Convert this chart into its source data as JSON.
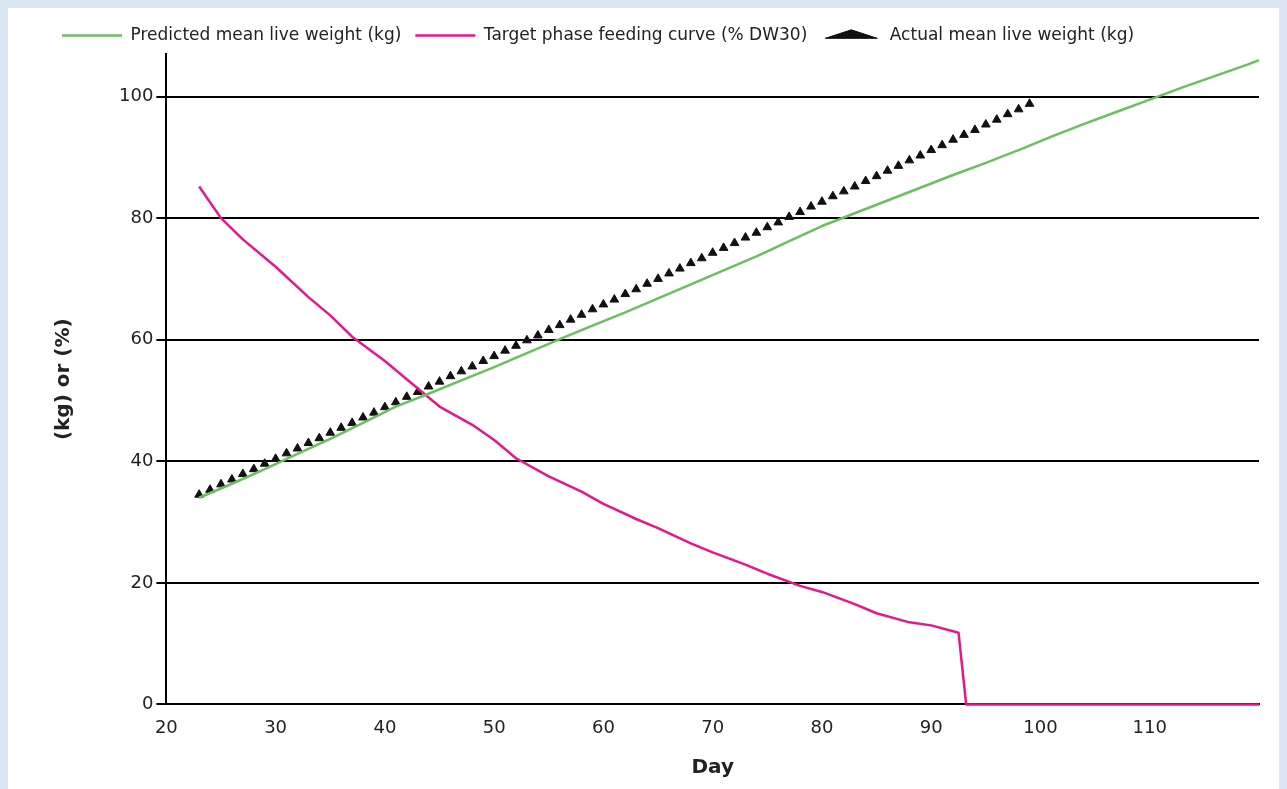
{
  "chart_data": {
    "type": "line",
    "xlabel": "Day",
    "ylabel": "(kg) or (%)",
    "xlim": [
      20,
      120
    ],
    "xticks": [
      20,
      30,
      40,
      50,
      60,
      70,
      80,
      90,
      100,
      110
    ],
    "ylim": [
      0,
      107
    ],
    "yticks": [
      0,
      20,
      40,
      60,
      80,
      100
    ],
    "grid": "y",
    "legend": "top left",
    "marker": "none",
    "line_style": "solid",
    "series": [
      {
        "name": "Predicted mean live weight (kg)",
        "color": "#6abf5e",
        "x": [
          23,
          26,
          29,
          32,
          35,
          38,
          41,
          44,
          47,
          50,
          53,
          56,
          59,
          62,
          65,
          68,
          71,
          74,
          77,
          80,
          83,
          86,
          89,
          92,
          95,
          98,
          101,
          104,
          107,
          110,
          113,
          116,
          119,
          120
        ],
        "values": [
          34,
          36.3,
          38.7,
          41.2,
          43.7,
          46.3,
          49,
          51.1,
          53.3,
          55.5,
          57.8,
          60.1,
          62.3,
          64.5,
          66.8,
          69.1,
          71.4,
          73.7,
          76.2,
          78.7,
          80.8,
          82.9,
          85,
          87.1,
          89.1,
          91.2,
          93.4,
          95.5,
          97.5,
          99.5,
          101.5,
          103.4,
          105.3,
          106
        ]
      },
      {
        "name": "Target phase feeding curve (% DW30)",
        "color": "#e8168c",
        "x": [
          23,
          25,
          27,
          30,
          33,
          35,
          37,
          40,
          42,
          45,
          48,
          50,
          52,
          55,
          58,
          60,
          63,
          65,
          68,
          70,
          73,
          75,
          78,
          80,
          83,
          85,
          88,
          90,
          92.5,
          93.2,
          120
        ],
        "values": [
          85.2,
          80,
          76.5,
          72,
          67,
          64,
          60.5,
          56.5,
          53.5,
          49,
          46,
          43.5,
          40.5,
          37.5,
          35,
          33,
          30.5,
          29,
          26.5,
          25,
          23,
          21.5,
          19.5,
          18.5,
          16.5,
          15,
          13.5,
          13,
          11.8,
          0,
          0
        ]
      },
      {
        "name": "Actual mean live weight (kg)",
        "type": "scatter",
        "marker": "triangle",
        "color": "#111111",
        "x": [
          23,
          24,
          25,
          26,
          27,
          28,
          29,
          30,
          31,
          32,
          33,
          34,
          35,
          36,
          37,
          38,
          39,
          40,
          41,
          42,
          43,
          44,
          45,
          46,
          47,
          48,
          49,
          50,
          51,
          52,
          53,
          54,
          55,
          56,
          57,
          58,
          59,
          60,
          61,
          62,
          63,
          64,
          65,
          66,
          67,
          68,
          69,
          70,
          71,
          72,
          73,
          74,
          75,
          76,
          77,
          78,
          79,
          80,
          81,
          82,
          83,
          84,
          85,
          86,
          87,
          88,
          89,
          90,
          91,
          92,
          93,
          94,
          95,
          96,
          97,
          98,
          99
        ],
        "values": [
          34.5,
          35.3,
          36.2,
          37.0,
          37.9,
          38.7,
          39.6,
          40.4,
          41.3,
          42.1,
          43.0,
          43.8,
          44.7,
          45.5,
          46.3,
          47.2,
          48.0,
          48.9,
          49.7,
          50.6,
          51.4,
          52.3,
          53.1,
          54.0,
          54.8,
          55.6,
          56.5,
          57.3,
          58.2,
          59.0,
          59.9,
          60.7,
          61.6,
          62.4,
          63.3,
          64.1,
          65.0,
          65.8,
          66.6,
          67.5,
          68.3,
          69.2,
          70.0,
          70.9,
          71.7,
          72.6,
          73.4,
          74.3,
          75.1,
          75.9,
          76.8,
          77.6,
          78.5,
          79.3,
          80.2,
          81.0,
          81.9,
          82.7,
          83.6,
          84.4,
          85.2,
          86.1,
          86.9,
          87.8,
          88.6,
          89.5,
          90.3,
          91.2,
          92.0,
          92.9,
          93.7,
          94.5,
          95.4,
          96.2,
          97.1,
          97.9,
          98.8
        ]
      }
    ]
  }
}
